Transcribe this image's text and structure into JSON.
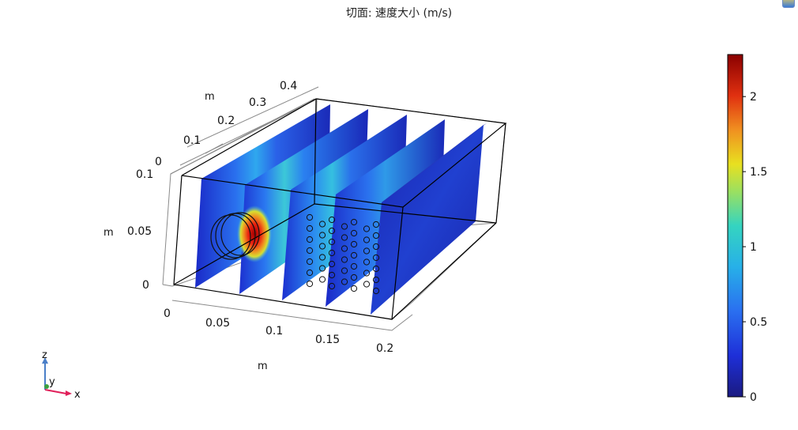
{
  "title": "切面: 速度大小 (m/s)",
  "colors": {
    "frame": "#000000",
    "bbox": "#8a8a8a",
    "hole_stroke": "#111111",
    "axis_x": "#e0205a",
    "axis_y": "#3aa040",
    "axis_z": "#4a7fc8"
  },
  "chart_data": {
    "type": "heatmap",
    "title": "切面: 速度大小 (m/s)",
    "quantity": "速度大小",
    "unit": "m/s",
    "x_axis": {
      "label": "m",
      "ticks": [
        "0",
        "0.05",
        "0.1",
        "0.15",
        "0.2"
      ]
    },
    "y_axis": {
      "label": "m",
      "ticks": [
        "0",
        "0.1",
        "0.2",
        "0.3",
        "0.4"
      ]
    },
    "z_axis": {
      "label": "m",
      "ticks": [
        "0",
        "0.05",
        "0.1"
      ]
    },
    "colorbar": {
      "min": 0,
      "max": 2.28,
      "ticks": [
        "0",
        "0.5",
        "1",
        "1.5",
        "2"
      ]
    },
    "slices": [
      {
        "x": 0.02,
        "peak_speed": 0.6
      },
      {
        "x": 0.05,
        "peak_speed": 2.25
      },
      {
        "x": 0.09,
        "peak_speed": 0.7
      },
      {
        "x": 0.13,
        "peak_speed": 0.6
      },
      {
        "x": 0.17,
        "peak_speed": 0.3
      }
    ]
  },
  "triad": {
    "x": "x",
    "y": "y",
    "z": "z"
  }
}
